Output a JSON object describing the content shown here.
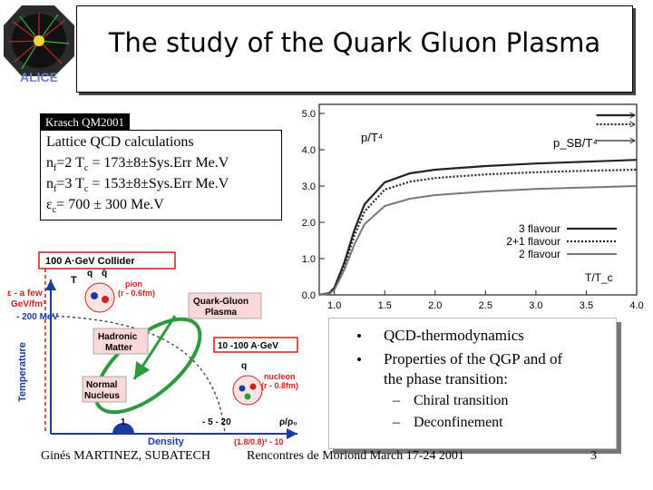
{
  "slide": {
    "title": "The study of the Quark Gluon Plasma",
    "logo_text": "ALICE",
    "tag": "Krasch QM2001"
  },
  "lattice": {
    "heading": "Lattice QCD calculations",
    "line1_pre": "n",
    "line1_sub": "f",
    "line1_post": "=2  T",
    "line1_sub2": "c",
    "line1_end": " = 173±8±Sys.Err  Me.V",
    "line2_pre": "n",
    "line2_sub": "f",
    "line2_post": "=3  T",
    "line2_sub2": "c",
    "line2_end": " = 153±8±Sys.Err  Me.V",
    "line3_pre": "ε",
    "line3_sub": "c",
    "line3_end": "= 700 ± 300 Me.V"
  },
  "chart_data": {
    "type": "line",
    "ylabel": "p/T⁴",
    "xlabel": "T/T_c",
    "x_ticks": [
      "1.0",
      "1.5",
      "2.0",
      "2.5",
      "3.0",
      "3.5",
      "4.0"
    ],
    "y_ticks": [
      "0.0",
      "1.0",
      "2.0",
      "3.0",
      "4.0",
      "5.0"
    ],
    "xlim": [
      0.85,
      4.0
    ],
    "ylim": [
      0.0,
      5.0
    ],
    "annotation": "p_SB/T⁴",
    "series": [
      {
        "name": "3 flavour",
        "style": "solid",
        "x": [
          0.85,
          0.95,
          1.0,
          1.1,
          1.2,
          1.3,
          1.5,
          1.75,
          2.0,
          2.5,
          3.0,
          3.5,
          4.0
        ],
        "y": [
          0.0,
          0.05,
          0.2,
          0.9,
          1.8,
          2.5,
          3.1,
          3.35,
          3.45,
          3.55,
          3.62,
          3.67,
          3.72
        ]
      },
      {
        "name": "2+1 flavour",
        "style": "dotted",
        "x": [
          0.85,
          0.95,
          1.0,
          1.1,
          1.2,
          1.3,
          1.5,
          1.75,
          2.0,
          2.5,
          3.0,
          3.5,
          4.0
        ],
        "y": [
          0.0,
          0.04,
          0.18,
          0.8,
          1.65,
          2.3,
          2.9,
          3.12,
          3.22,
          3.32,
          3.38,
          3.42,
          3.45
        ]
      },
      {
        "name": "2 flavour",
        "style": "solid-gray",
        "x": [
          0.85,
          0.95,
          1.0,
          1.1,
          1.2,
          1.3,
          1.5,
          1.75,
          2.0,
          2.5,
          3.0,
          3.5,
          4.0
        ],
        "y": [
          0.0,
          0.03,
          0.14,
          0.7,
          1.4,
          1.95,
          2.45,
          2.65,
          2.75,
          2.85,
          2.92,
          2.96,
          3.0
        ]
      }
    ],
    "sb_limits": [
      4.95,
      4.7,
      4.25
    ]
  },
  "diagram": {
    "collider": "100 A·GeV Collider",
    "t_axis": "T",
    "eps_label1": "ε - a few",
    "eps_label2": "GeV/fm³",
    "temp_label": "- 200 MeV",
    "ylabel": "Temperature",
    "xlabel": "Density",
    "x_right": "ρ/ρ₀",
    "hadronic1": "Hadronic",
    "hadronic2": "Matter",
    "qgp1": "Quark-Gluon",
    "qgp2": "Plasma",
    "range": "10 -100 A·GeV",
    "normal1": "Normal",
    "normal2": "Nucleus",
    "pion1": "pion",
    "pion2": "(r - 0.6fm)",
    "nucleon1": "nucleon",
    "nucleon2": "(r - 0.8fm)",
    "q": "q",
    "qbar": "q̄",
    "tick1": "1",
    "tick2": "- 5 - 20",
    "formula": "(1.8/0.8)³ - 10"
  },
  "bullets": {
    "b1": "QCD-thermodynamics",
    "b2a": "Properties of the QGP and of",
    "b2b": "the phase transition:",
    "s1": "Chiral transition",
    "s2": "Deconfinement",
    "bullet_char": "•",
    "dash_char": "–"
  },
  "footer": {
    "author": "Ginés MARTINEZ, SUBATECH",
    "event": "Rencontres de Moriond March 17-24 2001",
    "page": "3"
  },
  "colors": {
    "accent_red": "#d11e1e",
    "green": "#2a9a3a",
    "blue": "#1a3aa0"
  }
}
